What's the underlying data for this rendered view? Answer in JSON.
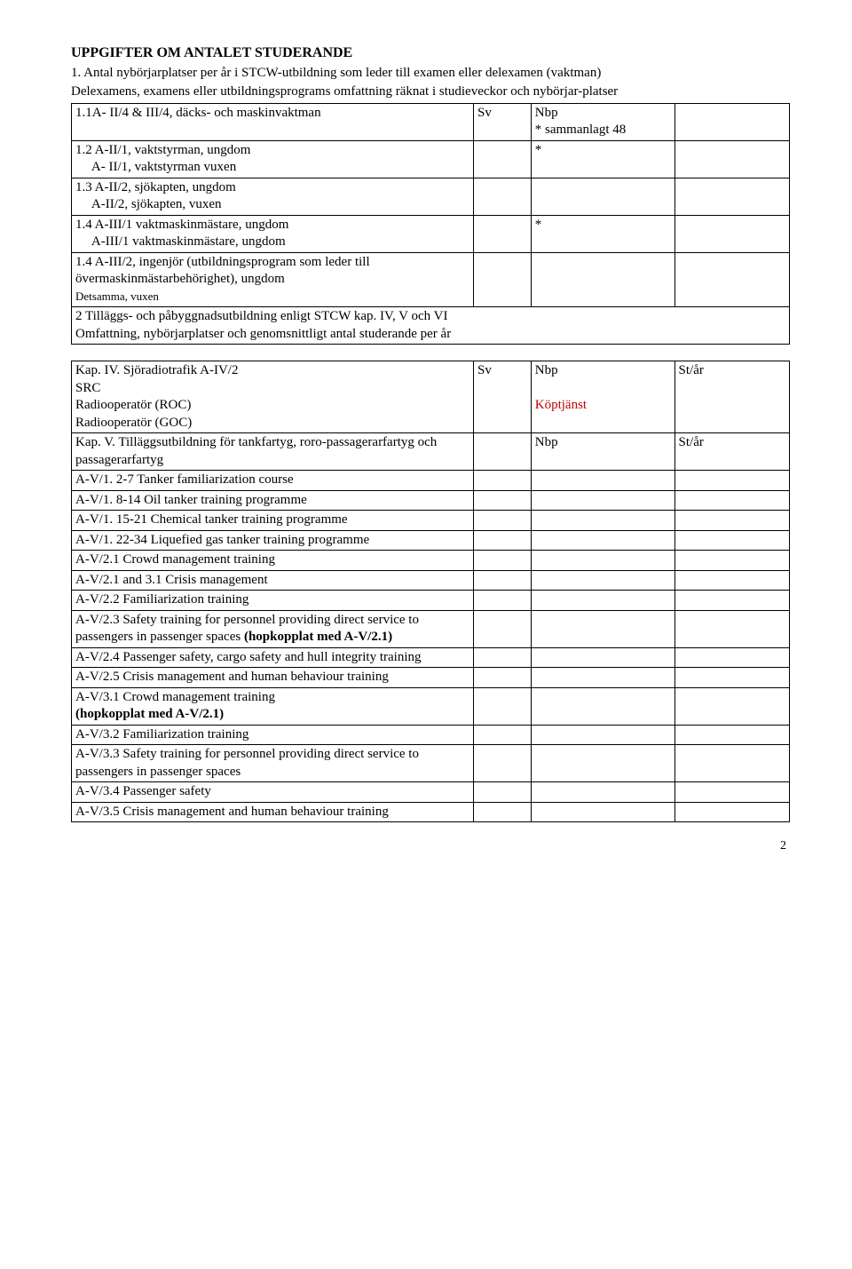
{
  "title": "UPPGIFTER OM ANTALET STUDERANDE",
  "intro1": "1. Antal nybörjarplatser per år i STCW-utbildning som leder till examen eller delexamen (vaktman)",
  "intro2": "Delexamens, examens eller utbildningsprograms omfattning räknat i studieveckor och nybörjar-platser",
  "t1": {
    "r1": {
      "a": "1.1A- II/4 & III/4, däcks- och maskinvaktman",
      "b": "Sv",
      "c": "Nbp\n* sammanlagt 48",
      "d": ""
    },
    "r2a": "1.2 A-II/1, vaktstyrman, ungdom",
    "r2b": "     A- II/1, vaktstyrman vuxen",
    "r2c": "*",
    "r3a": "1.3 A-II/2, sjökapten, ungdom",
    "r3b": "     A-II/2, sjökapten, vuxen",
    "r4a": "1.4 A-III/1 vaktmaskinmästare, ungdom",
    "r4b": "     A-III/1 vaktmaskinmästare, ungdom",
    "r4c": "*",
    "r5a": "1.4 A-III/2, ingenjör (utbildningsprogram som leder till övermaskinmästarbehörighet), ungdom",
    "r5b": "Detsamma, vuxen",
    "r6a": "2 Tilläggs- och påbyggnadsutbildning enligt STCW kap. IV, V och VI",
    "r6b": "Omfattning, nybörjarplatser och genomsnittligt antal studerande per år"
  },
  "t2": {
    "r1a1": "Kap. IV. Sjöradiotrafik A-IV/2",
    "r1a2": "SRC",
    "r1a3": "Radiooperatör (ROC)",
    "r1a4": "Radiooperatör (GOC)",
    "r1b": "Sv",
    "r1c1": "Nbp",
    "r1c2": "Köptjänst",
    "r1d": "St/år",
    "r2a": "Kap. V. Tilläggsutbildning för tankfartyg, roro-passagerarfartyg och passagerarfartyg",
    "r2c": "Nbp",
    "r2d": "St/år",
    "r3": "A-V/1. 2-7 Tanker familiarization course",
    "r4": "A-V/1. 8-14 Oil tanker training programme",
    "r5": "A-V/1. 15-21 Chemical tanker training programme",
    "r6": "A-V/1. 22-34 Liquefied gas tanker training programme",
    "r7": "A-V/2.1 Crowd management training",
    "r8": "A-V/2.1 and 3.1 Crisis management",
    "r9": "A-V/2.2 Familiarization training",
    "r10a": "A-V/2.3 Safety training for personnel providing direct service to passengers in passenger spaces ",
    "r10b": "(hopkopplat med A-V/2.1)",
    "r11": "A-V/2.4 Passenger safety, cargo safety and hull integrity training",
    "r12": "A-V/2.5 Crisis management and human behaviour training",
    "r13a": "A-V/3.1 Crowd management training",
    "r13b": "(hopkopplat med A-V/2.1)",
    "r14": "A-V/3.2 Familiarization training",
    "r15": "A-V/3.3 Safety training for personnel providing direct service to passengers in passenger spaces",
    "r16": "A-V/3.4 Passenger safety",
    "r17": "A-V/3.5 Crisis management and human behaviour training"
  },
  "pageNum": "2"
}
